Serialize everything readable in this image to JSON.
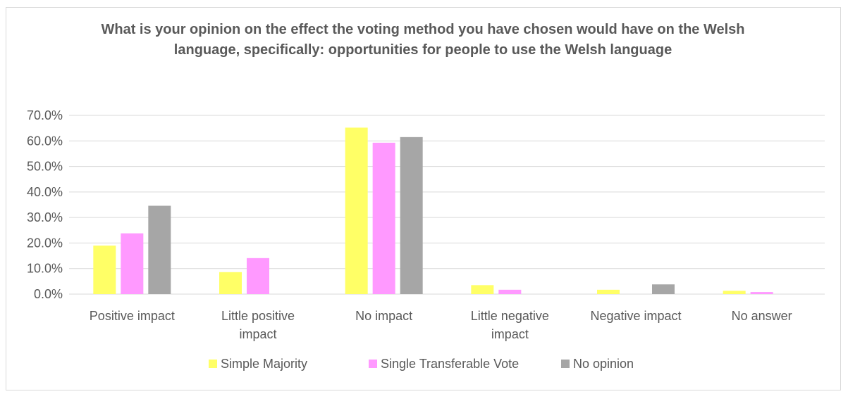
{
  "chart_data": {
    "type": "bar",
    "title": "What is your opinion on the effect the voting method you have chosen would have on the Welsh language, specifically: opportunities for people to use the Welsh language",
    "categories": [
      [
        "Positive impact"
      ],
      [
        "Little positive",
        "impact"
      ],
      [
        "No impact"
      ],
      [
        "Little negative",
        "impact"
      ],
      [
        "Negative impact"
      ],
      [
        "No answer"
      ]
    ],
    "series": [
      {
        "name": "Simple Majority",
        "color": "#ffff66",
        "values": [
          19.0,
          8.6,
          65.2,
          3.5,
          1.7,
          1.3
        ]
      },
      {
        "name": "Single Transferable Vote",
        "color": "#ff99ff",
        "values": [
          23.8,
          14.1,
          59.3,
          1.7,
          0.0,
          0.8
        ]
      },
      {
        "name": "No opinion",
        "color": "#a6a6a6",
        "values": [
          34.6,
          0.0,
          61.5,
          0.0,
          3.8,
          0.0
        ]
      }
    ],
    "y_ticks": [
      "0.0%",
      "10.0%",
      "20.0%",
      "30.0%",
      "40.0%",
      "50.0%",
      "60.0%",
      "70.0%"
    ],
    "ylim": [
      0,
      70
    ],
    "grid": true,
    "legend_position": "bottom"
  }
}
